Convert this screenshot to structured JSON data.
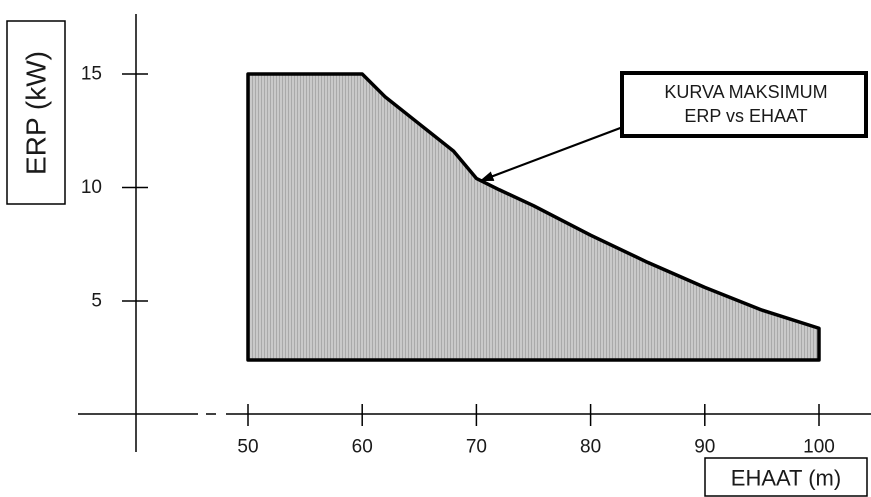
{
  "chart_data": {
    "type": "area",
    "xlabel": "EHAAT (m)",
    "ylabel": "ERP (kW)",
    "xticks": [
      50,
      60,
      70,
      80,
      90,
      100
    ],
    "yticks": [
      5,
      10,
      15
    ],
    "xlim": [
      40,
      102
    ],
    "ylim": [
      0,
      17
    ],
    "grid": false,
    "fill_pattern": "shaded gray",
    "region": {
      "x_min": 50,
      "x_max": 100,
      "y_min": 2.4,
      "flat_cap": 15,
      "flat_cap_until_x": 60
    },
    "series": [
      {
        "curve": "max ERP vs EHAAT",
        "x": [
          60,
          62,
          65,
          68,
          70,
          72,
          75,
          80,
          85,
          90,
          95,
          100
        ],
        "y": [
          15,
          14.0,
          12.8,
          11.6,
          10.4,
          9.9,
          9.2,
          7.9,
          6.7,
          5.6,
          4.6,
          3.8
        ]
      }
    ],
    "annotation": {
      "lines": [
        "KURVA MAKSIMUM",
        "ERP vs EHAAT"
      ],
      "points_to": {
        "x": 70,
        "y": 10.4
      }
    }
  }
}
